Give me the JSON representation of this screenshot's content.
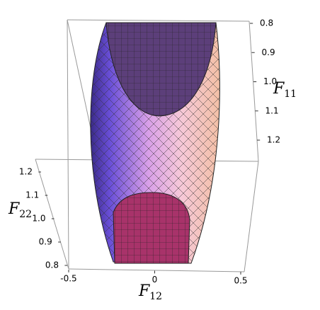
{
  "chart_data": {
    "type": "surface3d",
    "x_label": {
      "base": "F",
      "sub": "12"
    },
    "y_label": {
      "base": "F",
      "sub": "11"
    },
    "z_label": {
      "base": "F",
      "sub": "22"
    },
    "xlim": [
      -0.5,
      0.5
    ],
    "xticks": [
      -0.5,
      0,
      0.5
    ],
    "ylim": [
      0.8,
      1.2
    ],
    "yticks": [
      0.8,
      0.9,
      {
        "value": 1,
        "label": "1.0"
      },
      1.1,
      1.2
    ],
    "zlim": [
      0.8,
      1.2
    ],
    "zticks": [
      0.8,
      0.9,
      {
        "value": 1,
        "label": "1.0"
      },
      1.1,
      1.2
    ]
  }
}
